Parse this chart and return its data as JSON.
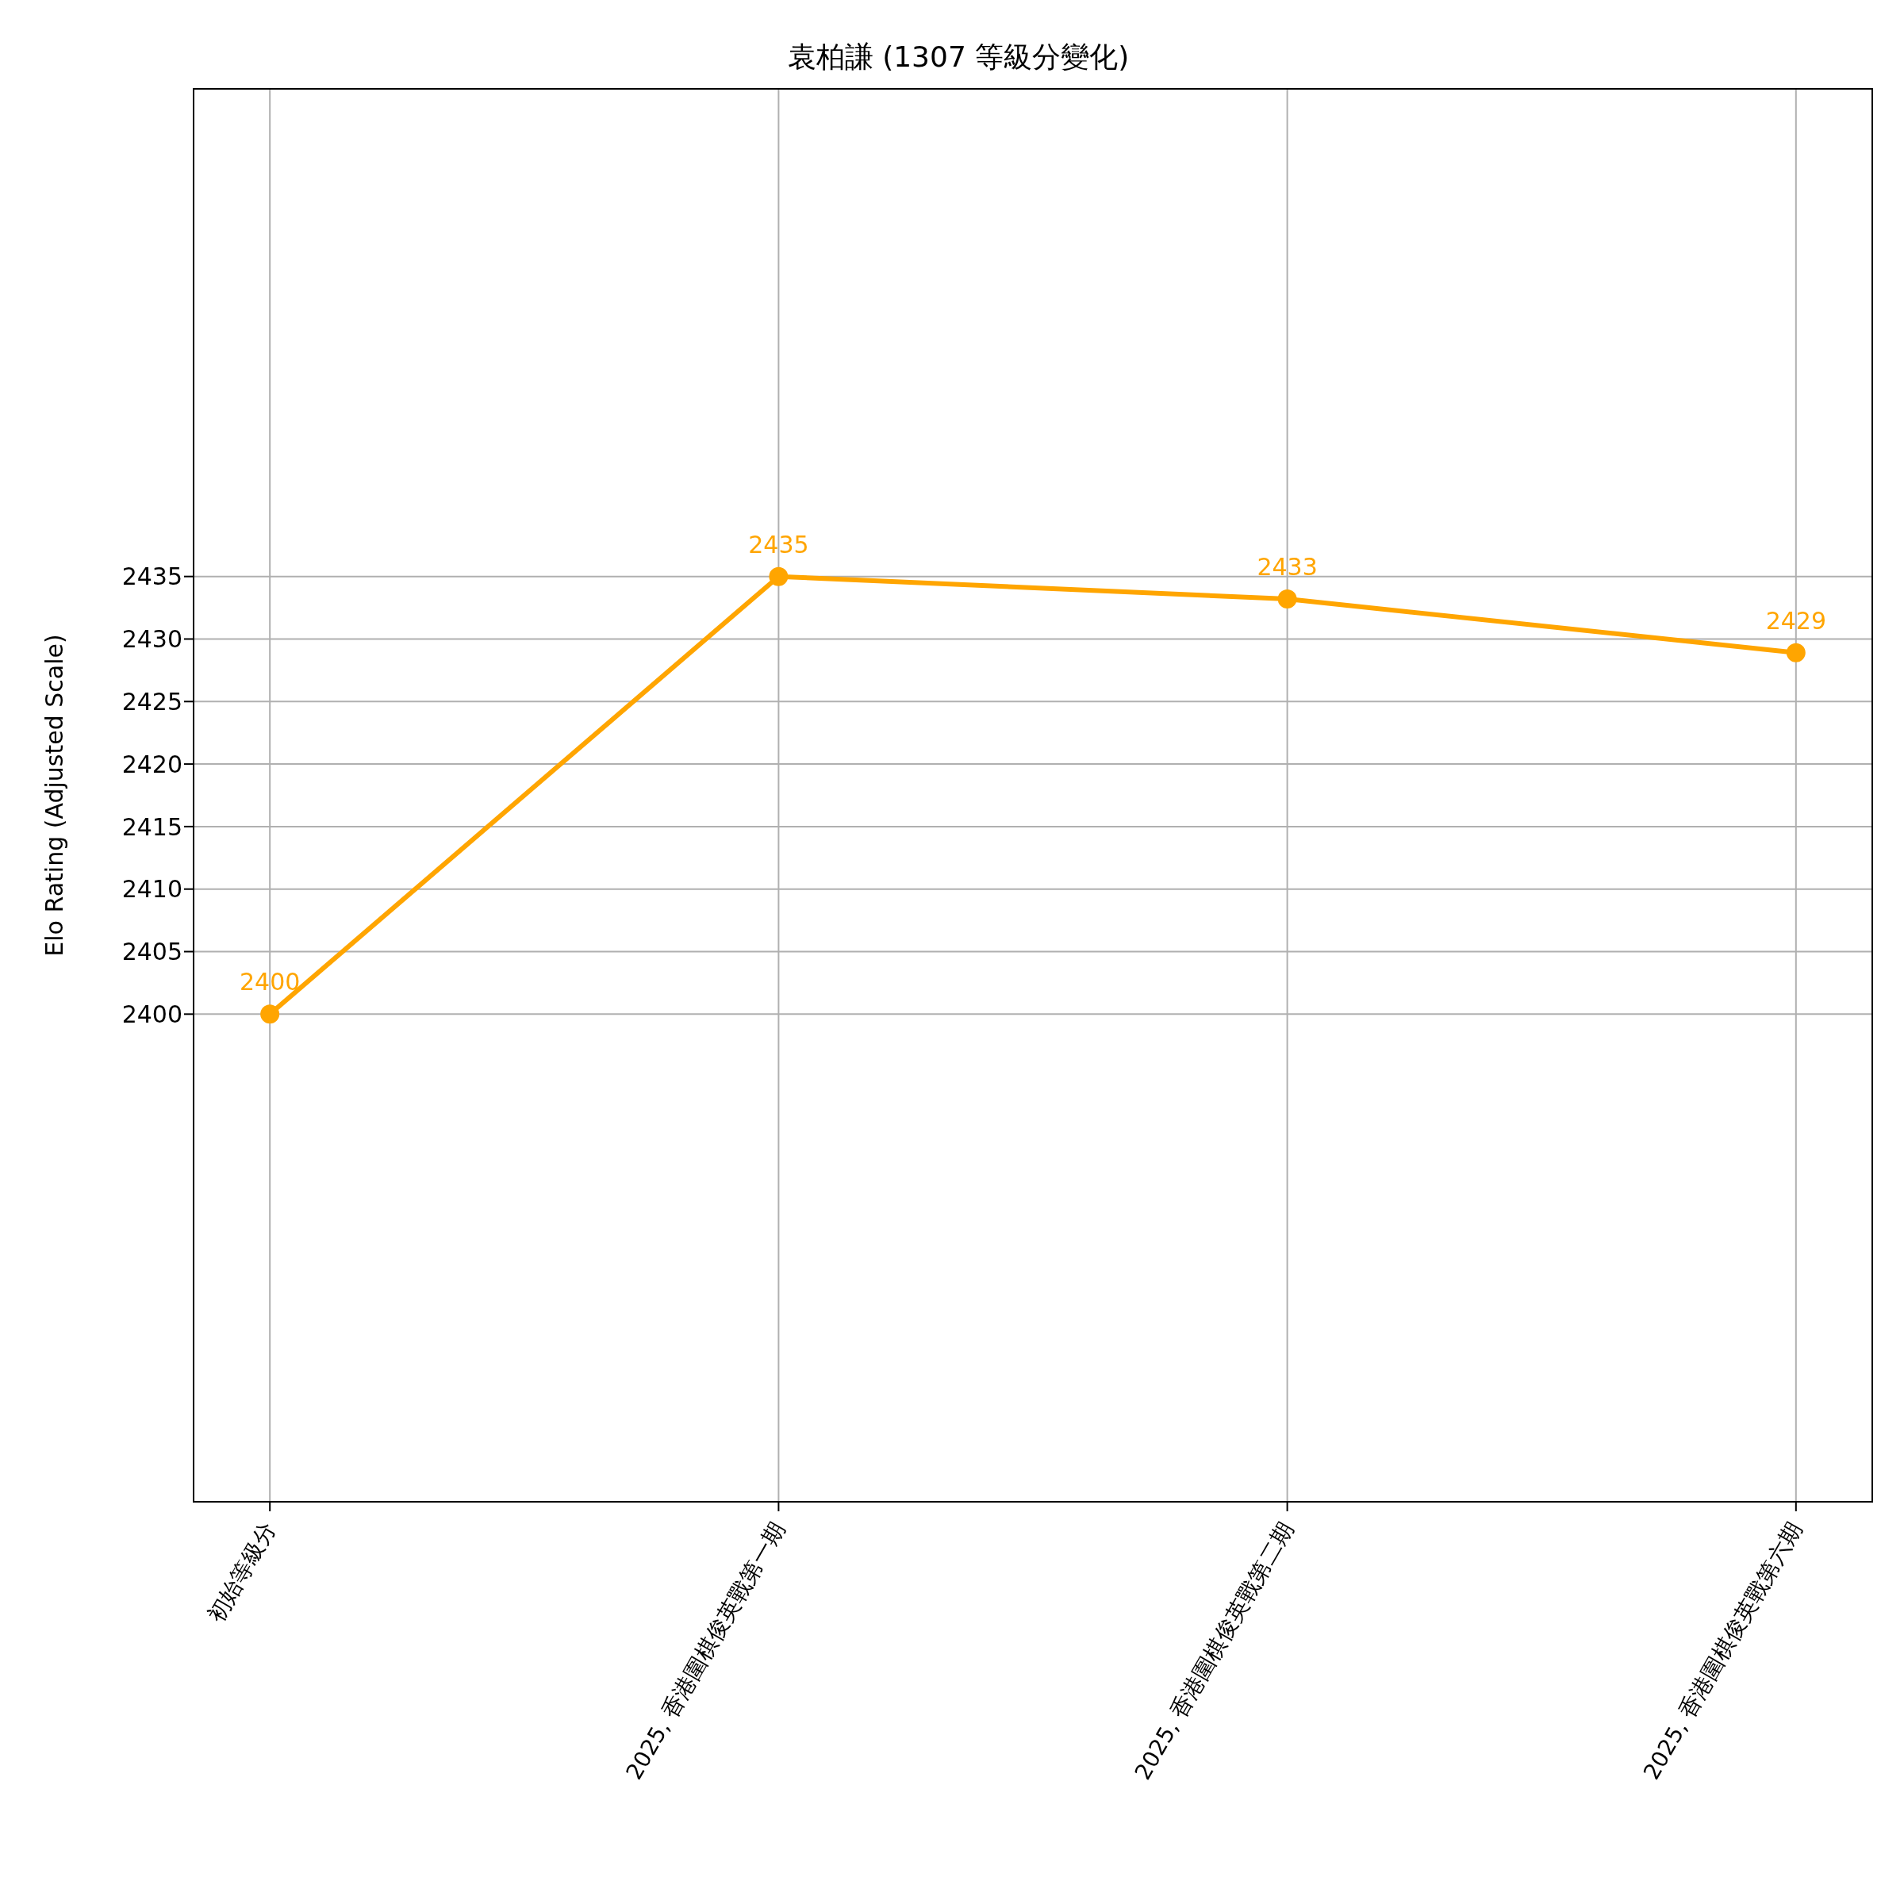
{
  "chart_data": {
    "type": "line",
    "title": "袁柏謙 (1307 等級分變化)",
    "ylabel": "Elo Rating (Adjusted Scale)",
    "categories": [
      "初始等級分",
      "2025, 香港圍棋俊英戰第一期",
      "2025, 香港圍棋俊英戰第二期",
      "2025, 香港圍棋俊英戰第六期"
    ],
    "series": [
      {
        "color": "#ffa500",
        "values": [
          2400,
          2435,
          2433.2,
          2428.9
        ],
        "value_labels": [
          "2400",
          "2435",
          "2433",
          "2429"
        ]
      }
    ],
    "ylim": [
      2361,
      2474
    ],
    "yticks": [
      2400,
      2405,
      2410,
      2415,
      2420,
      2425,
      2430,
      2435
    ],
    "grid": true,
    "legend": false,
    "marker": "circle",
    "line_style": "solid"
  }
}
